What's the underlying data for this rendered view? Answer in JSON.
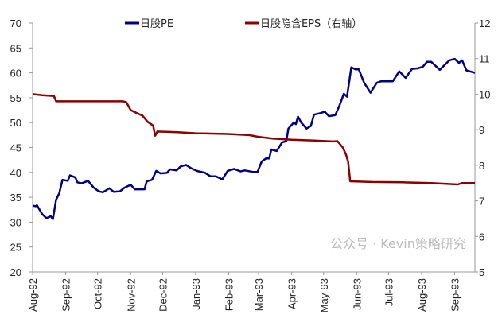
{
  "chart_data": {
    "type": "line",
    "title": "",
    "xlabel": "",
    "ylabel": "",
    "y2label": "",
    "ylim": [
      20,
      70
    ],
    "y2lim": [
      5,
      12
    ],
    "yticks": [
      20,
      25,
      30,
      35,
      40,
      45,
      50,
      55,
      60,
      65,
      70
    ],
    "y2ticks": [
      5,
      6,
      7,
      8,
      9,
      10,
      11,
      12
    ],
    "xlim": [
      "1992-08-01",
      "1993-09-20"
    ],
    "xtick_labels": [
      "Aug-92",
      "Sep-92",
      "Oct-92",
      "Nov-92",
      "Dec-92",
      "Jan-93",
      "Feb-93",
      "Mar-93",
      "Apr-93",
      "May-93",
      "Jun-93",
      "Jul-93",
      "Aug-93",
      "Sep-93"
    ],
    "xtick_dates": [
      "1992-08-01",
      "1992-09-01",
      "1992-10-01",
      "1992-11-01",
      "1992-12-01",
      "1993-01-01",
      "1993-02-01",
      "1993-03-01",
      "1993-04-01",
      "1993-05-01",
      "1993-06-01",
      "1993-07-01",
      "1993-08-01",
      "1993-09-01"
    ],
    "grid": false,
    "legend_placement": "top",
    "series": [
      {
        "name": "日股PE",
        "axis": "left",
        "color": "#000080",
        "points": [
          [
            "1992-08-01",
            33.3
          ],
          [
            "1992-08-04",
            33.2
          ],
          [
            "1992-08-05",
            33.4
          ],
          [
            "1992-08-10",
            31.6
          ],
          [
            "1992-08-14",
            30.8
          ],
          [
            "1992-08-18",
            31.2
          ],
          [
            "1992-08-20",
            30.6
          ],
          [
            "1992-08-23",
            34.5
          ],
          [
            "1992-08-26",
            35.8
          ],
          [
            "1992-08-29",
            38.5
          ],
          [
            "1992-09-03",
            38.3
          ],
          [
            "1992-09-05",
            39.4
          ],
          [
            "1992-09-10",
            39.0
          ],
          [
            "1992-09-12",
            38.0
          ],
          [
            "1992-09-16",
            37.8
          ],
          [
            "1992-09-22",
            38.3
          ],
          [
            "1992-09-27",
            37.0
          ],
          [
            "1992-10-02",
            36.2
          ],
          [
            "1992-10-06",
            36.0
          ],
          [
            "1992-10-12",
            36.8
          ],
          [
            "1992-10-16",
            36.1
          ],
          [
            "1992-10-22",
            36.2
          ],
          [
            "1992-10-26",
            36.9
          ],
          [
            "1992-11-01",
            37.5
          ],
          [
            "1992-11-05",
            36.6
          ],
          [
            "1992-11-14",
            36.6
          ],
          [
            "1992-11-16",
            38.2
          ],
          [
            "1992-11-21",
            38.5
          ],
          [
            "1992-11-25",
            40.3
          ],
          [
            "1992-11-29",
            39.8
          ],
          [
            "1992-12-05",
            39.9
          ],
          [
            "1992-12-08",
            40.6
          ],
          [
            "1992-12-14",
            40.4
          ],
          [
            "1992-12-18",
            41.2
          ],
          [
            "1992-12-23",
            41.5
          ],
          [
            "1992-12-28",
            40.8
          ],
          [
            "1993-01-02",
            40.3
          ],
          [
            "1993-01-10",
            39.9
          ],
          [
            "1993-01-15",
            39.2
          ],
          [
            "1993-01-20",
            39.2
          ],
          [
            "1993-01-26",
            38.6
          ],
          [
            "1993-01-31",
            40.3
          ],
          [
            "1993-02-06",
            40.7
          ],
          [
            "1993-02-12",
            40.2
          ],
          [
            "1993-02-16",
            40.4
          ],
          [
            "1993-02-24",
            40.1
          ],
          [
            "1993-02-28",
            40.1
          ],
          [
            "1993-03-04",
            42.2
          ],
          [
            "1993-03-08",
            42.8
          ],
          [
            "1993-03-11",
            42.8
          ],
          [
            "1993-03-13",
            44.6
          ],
          [
            "1993-03-18",
            44.3
          ],
          [
            "1993-03-23",
            46.0
          ],
          [
            "1993-03-27",
            46.3
          ],
          [
            "1993-03-29",
            48.8
          ],
          [
            "1993-04-03",
            50.0
          ],
          [
            "1993-04-05",
            49.7
          ],
          [
            "1993-04-07",
            51.2
          ],
          [
            "1993-04-10",
            50.0
          ],
          [
            "1993-04-15",
            48.8
          ],
          [
            "1993-04-19",
            49.3
          ],
          [
            "1993-04-22",
            51.6
          ],
          [
            "1993-04-28",
            51.9
          ],
          [
            "1993-05-02",
            52.2
          ],
          [
            "1993-05-06",
            51.3
          ],
          [
            "1993-05-12",
            51.5
          ],
          [
            "1993-05-16",
            53.5
          ],
          [
            "1993-05-20",
            55.8
          ],
          [
            "1993-05-23",
            55.2
          ],
          [
            "1993-05-27",
            61.1
          ],
          [
            "1993-05-31",
            60.7
          ],
          [
            "1993-06-03",
            60.7
          ],
          [
            "1993-06-08",
            58.0
          ],
          [
            "1993-06-14",
            56.0
          ],
          [
            "1993-06-20",
            58.0
          ],
          [
            "1993-06-24",
            58.3
          ],
          [
            "1993-07-05",
            58.3
          ],
          [
            "1993-07-11",
            60.3
          ],
          [
            "1993-07-17",
            59.0
          ],
          [
            "1993-07-23",
            60.8
          ],
          [
            "1993-07-28",
            60.9
          ],
          [
            "1993-08-02",
            61.2
          ],
          [
            "1993-08-06",
            62.2
          ],
          [
            "1993-08-10",
            62.2
          ],
          [
            "1993-08-18",
            60.6
          ],
          [
            "1993-08-27",
            62.5
          ],
          [
            "1993-09-01",
            62.8
          ],
          [
            "1993-09-05",
            62.0
          ],
          [
            "1993-09-08",
            62.5
          ],
          [
            "1993-09-12",
            60.5
          ],
          [
            "1993-09-20",
            60.0
          ]
        ]
      },
      {
        "name": "日股隐含EPS（右轴）",
        "axis": "right",
        "color": "#8b0000",
        "points": [
          [
            "1992-08-01",
            10.0
          ],
          [
            "1992-08-10",
            9.97
          ],
          [
            "1992-08-21",
            9.95
          ],
          [
            "1992-08-23",
            9.8
          ],
          [
            "1992-10-25",
            9.8
          ],
          [
            "1992-10-28",
            9.77
          ],
          [
            "1992-11-01",
            9.55
          ],
          [
            "1992-11-08",
            9.45
          ],
          [
            "1992-11-12",
            9.4
          ],
          [
            "1992-11-17",
            9.22
          ],
          [
            "1992-11-22",
            9.12
          ],
          [
            "1992-11-24",
            8.83
          ],
          [
            "1992-11-26",
            8.95
          ],
          [
            "1992-12-15",
            8.93
          ],
          [
            "1993-01-01",
            8.9
          ],
          [
            "1993-01-31",
            8.88
          ],
          [
            "1993-02-20",
            8.85
          ],
          [
            "1993-03-01",
            8.8
          ],
          [
            "1993-03-14",
            8.75
          ],
          [
            "1993-04-01",
            8.72
          ],
          [
            "1993-04-20",
            8.7
          ],
          [
            "1993-05-10",
            8.67
          ],
          [
            "1993-05-14",
            8.68
          ],
          [
            "1993-05-19",
            8.5
          ],
          [
            "1993-05-22",
            8.3
          ],
          [
            "1993-05-24",
            8.1
          ],
          [
            "1993-05-26",
            7.55
          ],
          [
            "1993-06-15",
            7.53
          ],
          [
            "1993-07-15",
            7.52
          ],
          [
            "1993-08-10",
            7.5
          ],
          [
            "1993-09-04",
            7.46
          ],
          [
            "1993-09-08",
            7.5
          ],
          [
            "1993-09-20",
            7.5
          ]
        ]
      }
    ]
  },
  "watermark": "公众号 · Kevin策略研究"
}
